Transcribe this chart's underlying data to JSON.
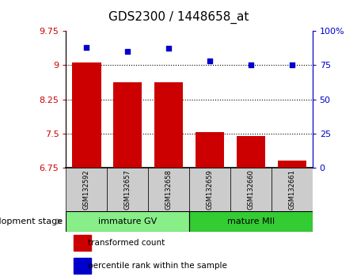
{
  "title": "GDS2300 / 1448658_at",
  "samples": [
    "GSM132592",
    "GSM132657",
    "GSM132658",
    "GSM132659",
    "GSM132660",
    "GSM132661"
  ],
  "bar_values": [
    9.05,
    8.62,
    8.62,
    7.54,
    7.45,
    6.92
  ],
  "percentile_values": [
    88,
    85,
    87,
    78,
    75,
    75
  ],
  "ylim_left": [
    6.75,
    9.75
  ],
  "ylim_right": [
    0,
    100
  ],
  "yticks_left": [
    6.75,
    7.5,
    8.25,
    9.0,
    9.75
  ],
  "yticks_right": [
    0,
    25,
    50,
    75,
    100
  ],
  "ytick_labels_left": [
    "6.75",
    "7.5",
    "8.25",
    "9",
    "9.75"
  ],
  "ytick_labels_right": [
    "0",
    "25",
    "50",
    "75",
    "100%"
  ],
  "hlines": [
    7.5,
    8.25,
    9.0
  ],
  "bar_color": "#cc0000",
  "scatter_color": "#0000cc",
  "bar_bottom": 6.75,
  "groups": [
    {
      "label": "immature GV",
      "indices": [
        0,
        1,
        2
      ],
      "color": "#88ee88"
    },
    {
      "label": "mature MII",
      "indices": [
        3,
        4,
        5
      ],
      "color": "#33cc33"
    }
  ],
  "group_label": "development stage",
  "legend_bar_label": "transformed count",
  "legend_scatter_label": "percentile rank within the sample",
  "sample_bg_color": "#cccccc",
  "title_fontsize": 11,
  "tick_fontsize": 8,
  "sample_label_fontsize": 6,
  "group_label_fontsize": 8,
  "legend_fontsize": 7.5,
  "axis_color_left": "#cc0000",
  "axis_color_right": "#0000cc",
  "plot_bg_color": "#ffffff"
}
